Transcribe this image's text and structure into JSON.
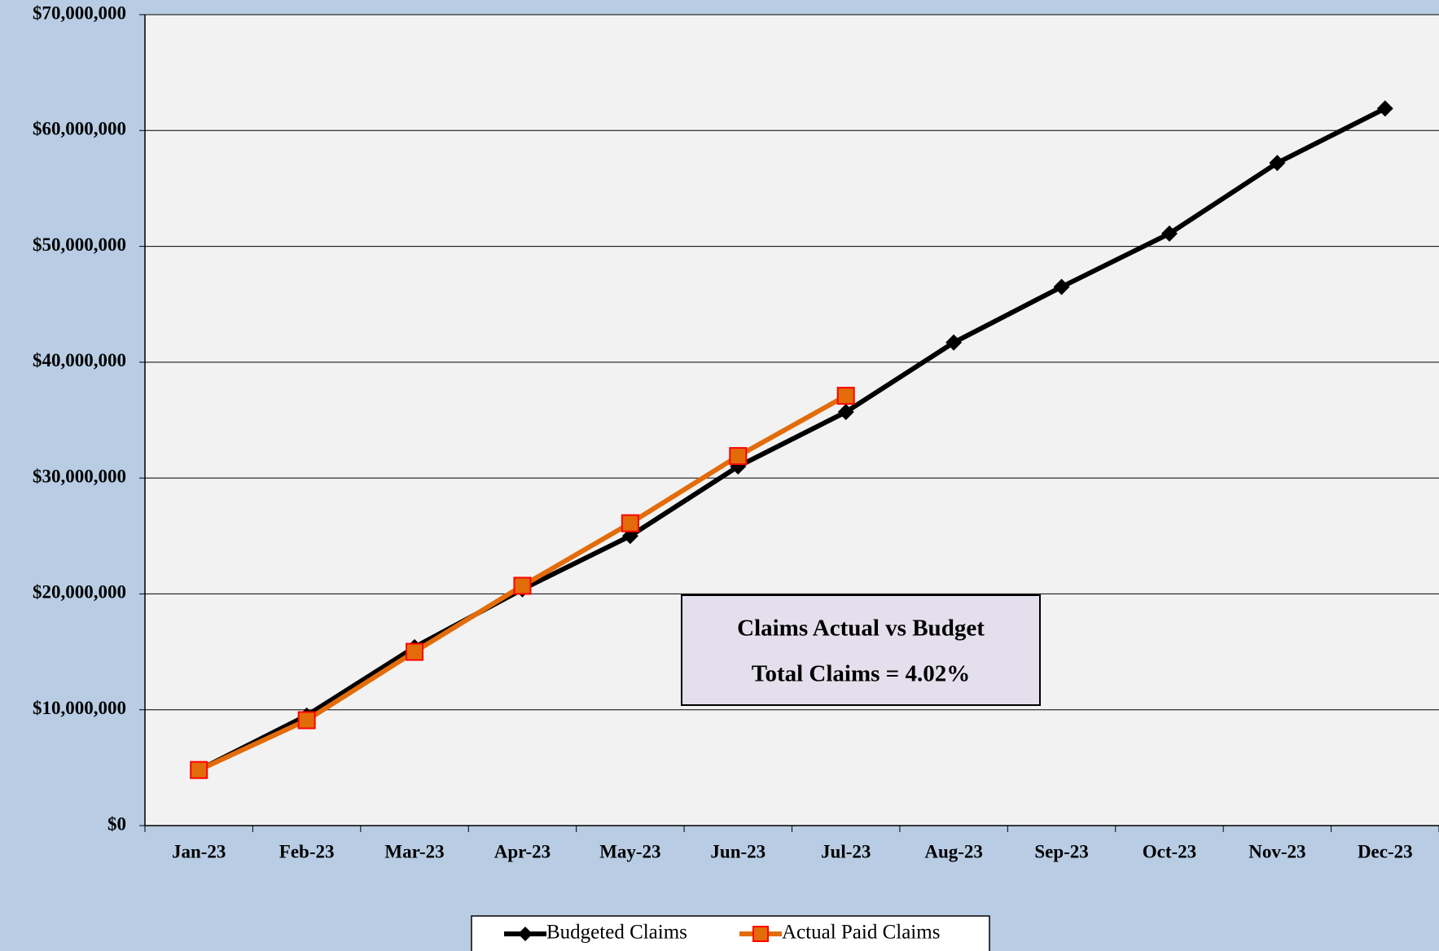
{
  "chart_data": {
    "type": "line",
    "categories": [
      "Jan-23",
      "Feb-23",
      "Mar-23",
      "Apr-23",
      "May-23",
      "Jun-23",
      "Jul-23",
      "Aug-23",
      "Sep-23",
      "Oct-23",
      "Nov-23",
      "Dec-23"
    ],
    "series": [
      {
        "name": "Budgeted Claims",
        "color": "#000000",
        "marker": "diamond",
        "values": [
          4800000,
          9500000,
          15400000,
          20400000,
          25000000,
          31000000,
          35700000,
          41700000,
          46500000,
          51100000,
          57200000,
          61900000
        ]
      },
      {
        "name": "Actual Paid Claims",
        "color": "#e36c0a",
        "marker": "square",
        "marker_edgecolor": "#ff0000",
        "values": [
          4800000,
          9100000,
          15000000,
          20700000,
          26100000,
          31900000,
          37100000,
          null,
          null,
          null,
          null,
          null
        ]
      }
    ],
    "ylim": [
      0,
      70000000
    ],
    "yticks": [
      {
        "value": 0,
        "label": "$0"
      },
      {
        "value": 10000000,
        "label": "$10,000,000"
      },
      {
        "value": 20000000,
        "label": "$20,000,000"
      },
      {
        "value": 30000000,
        "label": "$30,000,000"
      },
      {
        "value": 40000000,
        "label": "$40,000,000"
      },
      {
        "value": 50000000,
        "label": "$50,000,000"
      },
      {
        "value": 60000000,
        "label": "$60,000,000"
      },
      {
        "value": 70000000,
        "label": "$70,000,000"
      }
    ],
    "grid": true,
    "legend": "bottom",
    "annotations": [
      "Claims Actual vs Budget",
      "Total Claims = 4.02%"
    ]
  }
}
